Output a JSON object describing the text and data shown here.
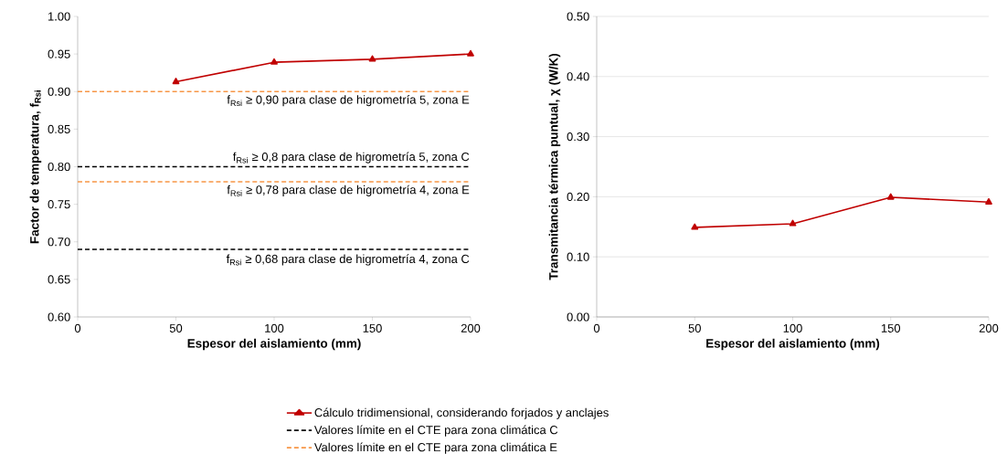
{
  "chart_data": [
    {
      "type": "line",
      "xlabel": "Espesor del aislamiento (mm)",
      "ylabel": "Factor de temperatura, f$_{Rsi}$",
      "xlim": [
        0,
        200
      ],
      "xticks": [
        0,
        50,
        100,
        150,
        200
      ],
      "ylim": [
        0.6,
        1.0
      ],
      "yticks": [
        {
          "value": 0.6,
          "label": "0.60"
        },
        {
          "value": 0.65,
          "label": "0.65"
        },
        {
          "value": 0.7,
          "label": "0.70"
        },
        {
          "value": 0.75,
          "label": "0.75"
        },
        {
          "value": 0.8,
          "label": "0.80"
        },
        {
          "value": 0.85,
          "label": "0.85"
        },
        {
          "value": 0.9,
          "label": "0.90"
        },
        {
          "value": 0.95,
          "label": "0.95"
        },
        {
          "value": 1.0,
          "label": "1.00"
        }
      ],
      "grid": false,
      "legend": "bottom",
      "series": [
        {
          "name": "Cálculo tridimensional, considerando forjados y anclajes",
          "color": "#c00000",
          "marker": "triangle",
          "line_style": "solid",
          "x": [
            50,
            100,
            150,
            200
          ],
          "values": [
            0.913,
            0.939,
            0.943,
            0.95
          ]
        },
        {
          "name": "Valores límite en el CTE para zona climática C",
          "color": "#000000",
          "marker": "none",
          "line_style": "dashed",
          "x": [
            0,
            200
          ],
          "values": [
            0.8,
            0.8
          ]
        },
        {
          "name": "Valores límite en el CTE para zona climática E",
          "color": "#f79646",
          "marker": "none",
          "line_style": "dashed",
          "x": [
            0,
            200
          ],
          "values": [
            0.9,
            0.9
          ]
        },
        {
          "color": "#000000",
          "marker": "none",
          "line_style": "dashed",
          "x": [
            0,
            200
          ],
          "values": [
            0.69,
            0.69
          ]
        },
        {
          "color": "#f79646",
          "marker": "none",
          "line_style": "dashed",
          "x": [
            0,
            200
          ],
          "values": [
            0.78,
            0.78
          ]
        }
      ],
      "annotations": [
        "f$_{Rsi}$ ≥ 0,90 para clase de higrometría 5, zona E",
        "f$_{Rsi}$ ≥ 0,8 para clase de higrometría 5, zona C",
        "f$_{Rsi}$ ≥ 0,78 para clase de higrometría 4, zona E",
        "f$_{Rsi}$ ≥ 0,68 para clase de higrometría 4, zona C"
      ]
    },
    {
      "type": "line",
      "xlabel": "Espesor del aislamiento (mm)",
      "ylabel": "Transmitancia térmica puntual, χ (W/K)",
      "xlim": [
        0,
        200
      ],
      "xticks": [
        0,
        50,
        100,
        150,
        200
      ],
      "ylim": [
        0,
        0.5
      ],
      "yticks": [
        {
          "value": 0,
          "label": "0.00"
        },
        {
          "value": 0.1,
          "label": "0.10"
        },
        {
          "value": 0.2,
          "label": "0.20"
        },
        {
          "value": 0.3,
          "label": "0.30"
        },
        {
          "value": 0.4,
          "label": "0.40"
        },
        {
          "value": 0.5,
          "label": "0.50"
        }
      ],
      "grid": "y",
      "series": [
        {
          "color": "#c00000",
          "marker": "triangle",
          "line_style": "solid",
          "x": [
            50,
            100,
            150,
            200
          ],
          "values": [
            0.149,
            0.155,
            0.199,
            0.191
          ]
        }
      ]
    }
  ]
}
